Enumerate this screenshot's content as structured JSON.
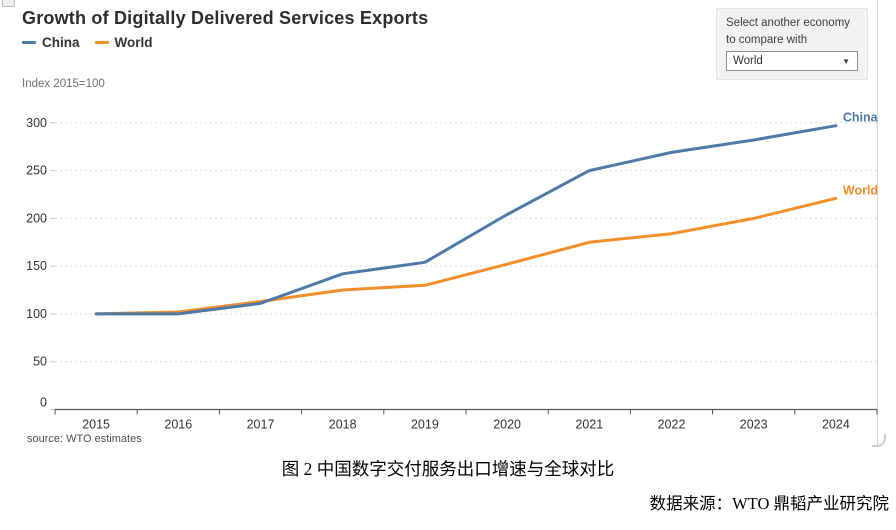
{
  "header": {
    "title": "Growth of Digitally Delivered Services Exports",
    "subtitle": "Index 2015=100",
    "source_note": "source: WTO estimates"
  },
  "legend": {
    "items": [
      {
        "label": "China",
        "color": "#4e79a7"
      },
      {
        "label": "World",
        "color": "#f28e2b"
      }
    ]
  },
  "compare_panel": {
    "label_line1": "Select another economy",
    "label_line2": "to compare with",
    "selected_value": "World",
    "caret_icon": "▼"
  },
  "chart_data": {
    "type": "line",
    "title": "Growth of Digitally Delivered Services Exports",
    "ylabel": "Index 2015=100",
    "xlabel": "",
    "ylim": [
      0,
      300
    ],
    "yticks": [
      0,
      50,
      100,
      150,
      200,
      250,
      300
    ],
    "grid": "horizontal-dashed",
    "legend_position": "top-left",
    "end_labels": true,
    "categories": [
      "2015",
      "2016",
      "2017",
      "2018",
      "2019",
      "2020",
      "2021",
      "2022",
      "2023",
      "2024"
    ],
    "series": [
      {
        "name": "China",
        "color": "#4e79a7",
        "values": [
          100,
          100,
          111,
          142,
          154,
          204,
          250,
          269,
          282,
          297
        ]
      },
      {
        "name": "World",
        "color": "#f28e2b",
        "values": [
          100,
          102,
          113,
          125,
          130,
          152,
          175,
          184,
          200,
          221
        ]
      }
    ]
  },
  "caption": {
    "figure_label": "图 2 中国数字交付服务出口增速与全球对比",
    "data_source": "数据来源：WTO 鼎韬产业研究院"
  }
}
